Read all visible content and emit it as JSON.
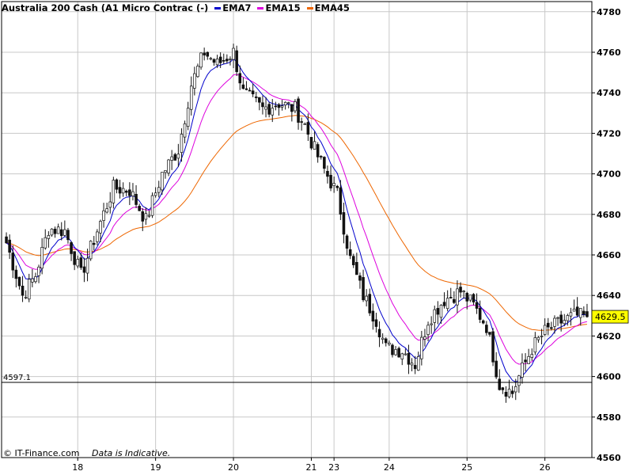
{
  "header": {
    "title": "Australia 200 Cash (A1 Micro Contrac (-)",
    "legend": [
      {
        "label": "EMA7",
        "color": "#0000cc"
      },
      {
        "label": "EMA15",
        "color": "#dd00dd"
      },
      {
        "label": "EMA45",
        "color": "#ee6600"
      }
    ]
  },
  "footer": {
    "credit": "© IT-Finance.com",
    "note": "Data is Indicative."
  },
  "colors": {
    "candle_up": "#ffffff",
    "candle_down": "#111111",
    "grid": "#c8c8c8",
    "price_box": "#ffff00"
  },
  "chart_data": {
    "type": "candlestick",
    "ylim": [
      4560,
      4785
    ],
    "yticks": [
      4560,
      4580,
      4600,
      4620,
      4640,
      4660,
      4680,
      4700,
      4720,
      4740,
      4760,
      4780
    ],
    "ytick_labels": [
      "4560",
      "4580",
      "4600",
      "4620",
      "4640",
      "4660",
      "4680",
      "4700",
      "4720",
      "4740",
      "4760",
      "4780"
    ],
    "xtick_labels": [
      "18",
      "19",
      "20",
      "21",
      "23",
      "24",
      "25",
      "26"
    ],
    "xtick_index": [
      22,
      46,
      70,
      94,
      101,
      118,
      142,
      166
    ],
    "bar_count": 180,
    "hline": {
      "value": 4597.1,
      "label": "4597.1"
    },
    "current_price": {
      "value": 4629.5,
      "label": "4629.5"
    },
    "anchors": [
      [
        0,
        4666
      ],
      [
        5,
        4640
      ],
      [
        9,
        4650
      ],
      [
        13,
        4673
      ],
      [
        18,
        4672
      ],
      [
        23,
        4650
      ],
      [
        28,
        4672
      ],
      [
        33,
        4693
      ],
      [
        38,
        4692
      ],
      [
        43,
        4677
      ],
      [
        48,
        4700
      ],
      [
        53,
        4712
      ],
      [
        57,
        4744
      ],
      [
        61,
        4760
      ],
      [
        65,
        4754
      ],
      [
        70,
        4760
      ],
      [
        73,
        4740
      ],
      [
        79,
        4732
      ],
      [
        84,
        4735
      ],
      [
        89,
        4732
      ],
      [
        92,
        4724
      ],
      [
        95,
        4712
      ],
      [
        98,
        4702
      ],
      [
        102,
        4690
      ],
      [
        106,
        4658
      ],
      [
        110,
        4640
      ],
      [
        114,
        4628
      ],
      [
        117,
        4614
      ],
      [
        122,
        4613
      ],
      [
        126,
        4606
      ],
      [
        130,
        4628
      ],
      [
        135,
        4638
      ],
      [
        140,
        4642
      ],
      [
        144,
        4635
      ],
      [
        148,
        4625
      ],
      [
        152,
        4596
      ],
      [
        156,
        4592
      ],
      [
        158,
        4600
      ],
      [
        162,
        4614
      ],
      [
        166,
        4622
      ],
      [
        171,
        4627
      ],
      [
        175,
        4630
      ],
      [
        179,
        4629.5
      ]
    ]
  }
}
